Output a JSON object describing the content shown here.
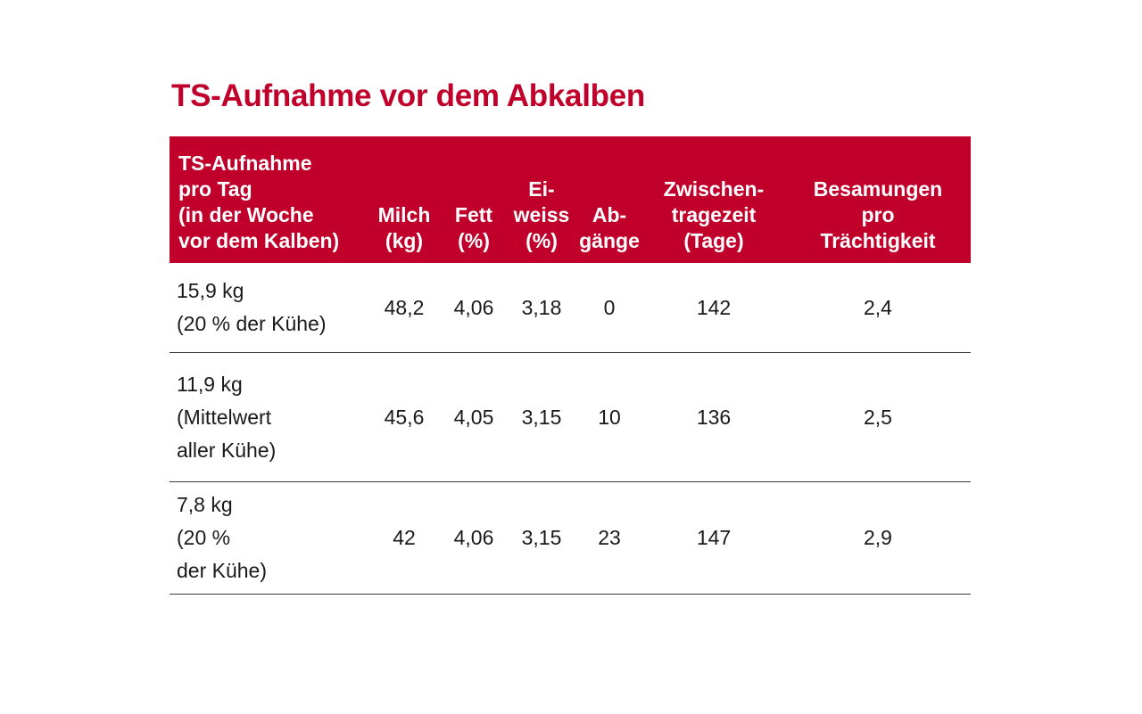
{
  "title": "TS-Aufnahme vor dem Abkalben",
  "table": {
    "headers": [
      "TS-Aufnahme\npro Tag\n(in der Woche\nvor dem Kalben)",
      "Milch\n(kg)",
      "Fett\n(%)",
      "Ei-\nweiss\n(%)",
      "Ab-\ngänge",
      "Zwischen-\ntragezeit\n(Tage)",
      "Besamungen\npro\nTrächtigkeit"
    ],
    "rows": [
      [
        "15,9 kg\n(20 % der Kühe)",
        "48,2",
        "4,06",
        "3,18",
        "0",
        "142",
        "2,4"
      ],
      [
        "11,9 kg\n(Mittelwert\naller Kühe)",
        "45,6",
        "4,05",
        "3,15",
        "10",
        "136",
        "2,5"
      ],
      [
        "7,8 kg\n(20 %\nder Kühe)",
        "42",
        "4,06",
        "3,15",
        "23",
        "147",
        "2,9"
      ]
    ]
  },
  "colors": {
    "accent": "#c0002a",
    "header_text": "#ffffff",
    "rule": "#3a3a3a"
  }
}
